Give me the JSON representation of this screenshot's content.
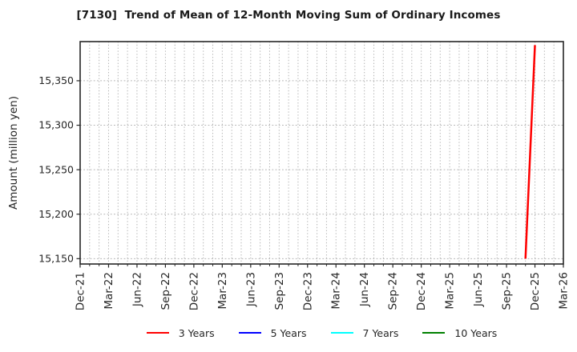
{
  "figure": {
    "background": "#ffffff"
  },
  "chart_data": {
    "type": "line",
    "title": "[7130]  Trend of Mean of 12-Month Moving Sum of Ordinary Incomes",
    "ylabel": "Amount (million yen)",
    "xlabel": "",
    "x_tick_labels": [
      "Dec-21",
      "Mar-22",
      "Jun-22",
      "Sep-22",
      "Dec-22",
      "Mar-23",
      "Jun-23",
      "Sep-23",
      "Dec-23",
      "Mar-24",
      "Jun-24",
      "Sep-24",
      "Dec-24",
      "Mar-25",
      "Jun-25",
      "Sep-25",
      "Dec-25",
      "Mar-26"
    ],
    "x_minor_tick_every_months": 1,
    "x_major_tick_every_months": 3,
    "xlim": [
      "Dec-21",
      "Mar-26"
    ],
    "y_ticks": [
      15150,
      15200,
      15250,
      15300,
      15350
    ],
    "y_tick_labels": [
      "15,150",
      "15,200",
      "15,250",
      "15,300",
      "15,350"
    ],
    "ylim": [
      15144,
      15394
    ],
    "grid": true,
    "grid_style": "dotted",
    "grid_color": "#b3b3b3",
    "axis_color": "#262626",
    "legend_position": "bottom",
    "series": [
      {
        "name": "3 Years",
        "color": "#ff0000",
        "points": [
          [
            "Nov-25",
            15150
          ],
          [
            "Dec-25",
            15390
          ]
        ]
      },
      {
        "name": "5 Years",
        "color": "#0000ff",
        "points": []
      },
      {
        "name": "7 Years",
        "color": "#00ffff",
        "points": []
      },
      {
        "name": "10 Years",
        "color": "#008000",
        "points": []
      }
    ]
  }
}
